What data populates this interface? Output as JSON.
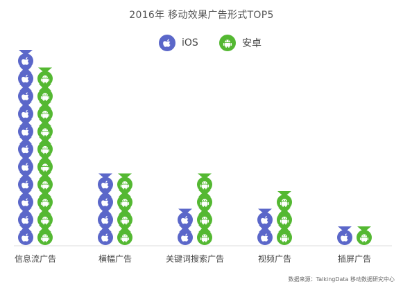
{
  "chart_data": {
    "type": "bar",
    "title": "2016年 移动效果广告形式TOP5",
    "categories": [
      "信息流广告",
      "横幅广告",
      "关键词搜索广告",
      "视频广告",
      "插屏广告"
    ],
    "series": [
      {
        "name": "iOS",
        "values": [
          11,
          4,
          2,
          2,
          1
        ],
        "color": "#5B67C9",
        "icon": "apple-icon"
      },
      {
        "name": "安卓",
        "values": [
          10,
          4,
          4,
          3,
          1
        ],
        "color": "#54B832",
        "icon": "android-icon"
      }
    ],
    "grid": false,
    "legend_position": "top-center"
  },
  "source": "数据来源：TalkingData 移动数据研究中心"
}
